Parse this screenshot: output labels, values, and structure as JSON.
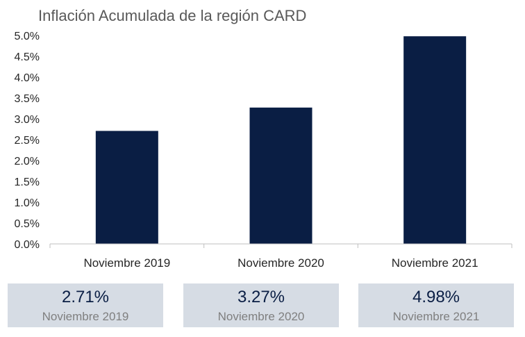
{
  "chart_data": {
    "type": "bar",
    "title": "Inflación Acumulada de la región CARD",
    "categories": [
      "Noviembre 2019",
      "Noviembre 2020",
      "Noviembre 2021"
    ],
    "values": [
      2.71,
      3.27,
      4.98
    ],
    "ylim": [
      0,
      5
    ],
    "yticks": [
      "0.0%",
      "0.5%",
      "1.0%",
      "1.5%",
      "2.0%",
      "2.5%",
      "3.0%",
      "3.5%",
      "4.0%",
      "4.5%",
      "5.0%"
    ],
    "grid": false,
    "legend": "none",
    "bar_color": "#0a1e44"
  },
  "summary_cards": [
    {
      "value": "2.71%",
      "label": "Noviembre 2019"
    },
    {
      "value": "3.27%",
      "label": "Noviembre 2020"
    },
    {
      "value": "4.98%",
      "label": "Noviembre 2021"
    }
  ]
}
